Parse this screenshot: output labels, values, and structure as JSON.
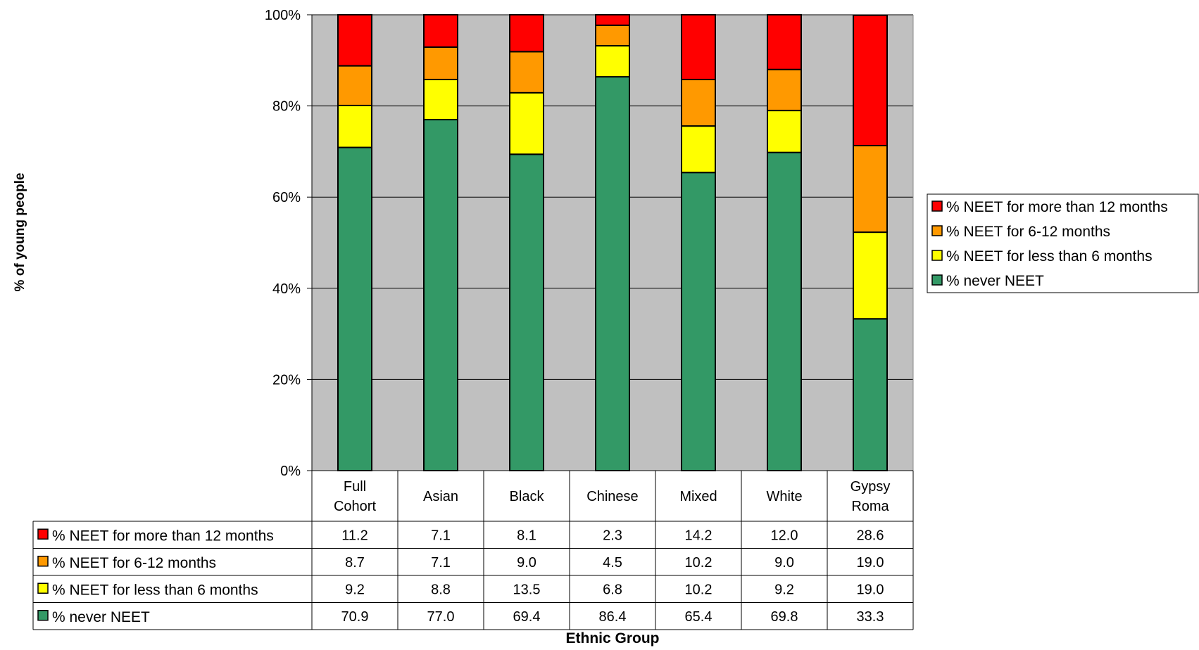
{
  "chart_data": {
    "type": "bar",
    "stacked": true,
    "ylabel": "% of young people",
    "xlabel": "Ethnic Group",
    "ylim": [
      0,
      100
    ],
    "y_ticks": [
      "0%",
      "20%",
      "40%",
      "60%",
      "80%",
      "100%"
    ],
    "grid": true,
    "legend_position": "right",
    "categories": [
      [
        "Full",
        "Cohort"
      ],
      [
        "Asian"
      ],
      [
        "Black"
      ],
      [
        "Chinese"
      ],
      [
        "Mixed"
      ],
      [
        "White"
      ],
      [
        "Gypsy",
        "Roma"
      ]
    ],
    "series": [
      {
        "name": "% never NEET",
        "color": "#339966",
        "values": [
          70.9,
          77.0,
          69.4,
          86.4,
          65.4,
          69.8,
          33.3
        ],
        "labels": [
          "70.9",
          "77.0",
          "69.4",
          "86.4",
          "65.4",
          "69.8",
          "33.3"
        ]
      },
      {
        "name": "% NEET for less than 6 months",
        "color": "#ffff00",
        "values": [
          9.2,
          8.8,
          13.5,
          6.8,
          10.2,
          9.2,
          19.0
        ],
        "labels": [
          "9.2",
          "8.8",
          "13.5",
          "6.8",
          "10.2",
          "9.2",
          "19.0"
        ]
      },
      {
        "name": "% NEET for 6-12 months",
        "color": "#ff9900",
        "values": [
          8.7,
          7.1,
          9.0,
          4.5,
          10.2,
          9.0,
          19.0
        ],
        "labels": [
          "8.7",
          "7.1",
          "9.0",
          "4.5",
          "10.2",
          "9.0",
          "19.0"
        ]
      },
      {
        "name": "% NEET for more than 12 months",
        "color": "#ff0000",
        "values": [
          11.2,
          7.1,
          8.1,
          2.3,
          14.2,
          12.0,
          28.6
        ],
        "labels": [
          "11.2",
          "7.1",
          "8.1",
          "2.3",
          "14.2",
          "12.0",
          "28.6"
        ]
      }
    ],
    "plot_background": "#c0c0c0"
  }
}
